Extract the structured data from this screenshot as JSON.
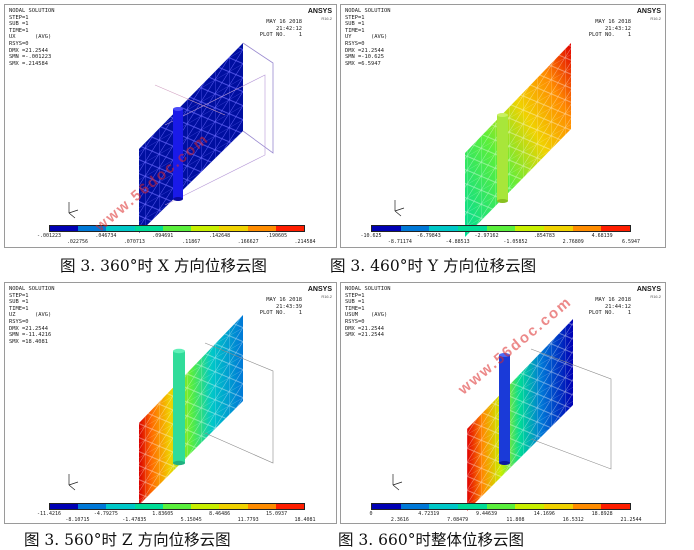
{
  "panels": [
    {
      "id": "ux",
      "info": [
        "NODAL SOLUTION",
        "STEP=1",
        "SUB =1",
        "TIME=1",
        "UX      (AVG)",
        "RSYS=0",
        "DMX =21.2544",
        "SMN =-.001223",
        "SMX =.214584"
      ],
      "date": "MAY 16 2018",
      "time": "21:42:12",
      "plot": "PLOT NO.    1",
      "ticks_top": [
        "-.001223",
        ".046734",
        ".094691",
        ".142648",
        ".190605"
      ],
      "ticks_bottom": [
        ".022756",
        ".070713",
        ".11867",
        ".166627",
        ".214584"
      ],
      "caption": "图 3. 360°时 X 方向位移云图"
    },
    {
      "id": "uy",
      "info": [
        "NODAL SOLUTION",
        "STEP=1",
        "SUB =1",
        "TIME=1",
        "UY      (AVG)",
        "RSYS=0",
        "DMX =21.2544",
        "SMN =-10.625",
        "SMX =6.5947"
      ],
      "date": "MAY 16 2018",
      "time": "21:43:12",
      "plot": "PLOT NO.    1",
      "ticks_top": [
        "-10.625",
        "-6.79843",
        "-2.97162",
        ".854783",
        "4.68139"
      ],
      "ticks_bottom": [
        "-8.71174",
        "-4.88513",
        "-1.05852",
        "2.76809",
        "6.5947"
      ],
      "caption": "图 3. 460°时 Y 方向位移云图"
    },
    {
      "id": "uz",
      "info": [
        "NODAL SOLUTION",
        "STEP=1",
        "SUB =1",
        "TIME=1",
        "UZ      (AVG)",
        "RSYS=0",
        "DMX =21.2544",
        "SMN =-11.4216",
        "SMX =18.4081"
      ],
      "date": "MAY 16 2018",
      "time": "21:43:39",
      "plot": "PLOT NO.    1",
      "ticks_top": [
        "-11.4216",
        "-4.79275",
        "1.83605",
        "8.46486",
        "15.0937"
      ],
      "ticks_bottom": [
        "-8.10715",
        "-1.47835",
        "5.15045",
        "11.7793",
        "18.4081"
      ],
      "caption": "图 3. 560°时 Z 方向位移云图"
    },
    {
      "id": "usum",
      "info": [
        "NODAL SOLUTION",
        "STEP=1",
        "SUB =1",
        "TIME=1",
        "USUM    (AVG)",
        "RSYS=0",
        "DMX =21.2544",
        "SMX =21.2544"
      ],
      "date": "MAY 16 2018",
      "time": "21:44:12",
      "plot": "PLOT NO.    1",
      "ticks_top": [
        "0",
        "4.72319",
        "9.44639",
        "14.1696",
        "18.8928"
      ],
      "ticks_bottom": [
        "2.3616",
        "7.08479",
        "11.808",
        "16.5312",
        "21.2544"
      ],
      "caption": "图 3. 660°时整体位移云图"
    }
  ],
  "ansys_logo": "ANSYS",
  "ansys_version": "R16.2",
  "watermark": "www.56doc.com",
  "legend_colors": [
    "#0000b4",
    "#0078d7",
    "#00c8c8",
    "#00dc96",
    "#5aef3c",
    "#c8ef00",
    "#f0d200",
    "#ff8c00",
    "#ff1e00"
  ]
}
